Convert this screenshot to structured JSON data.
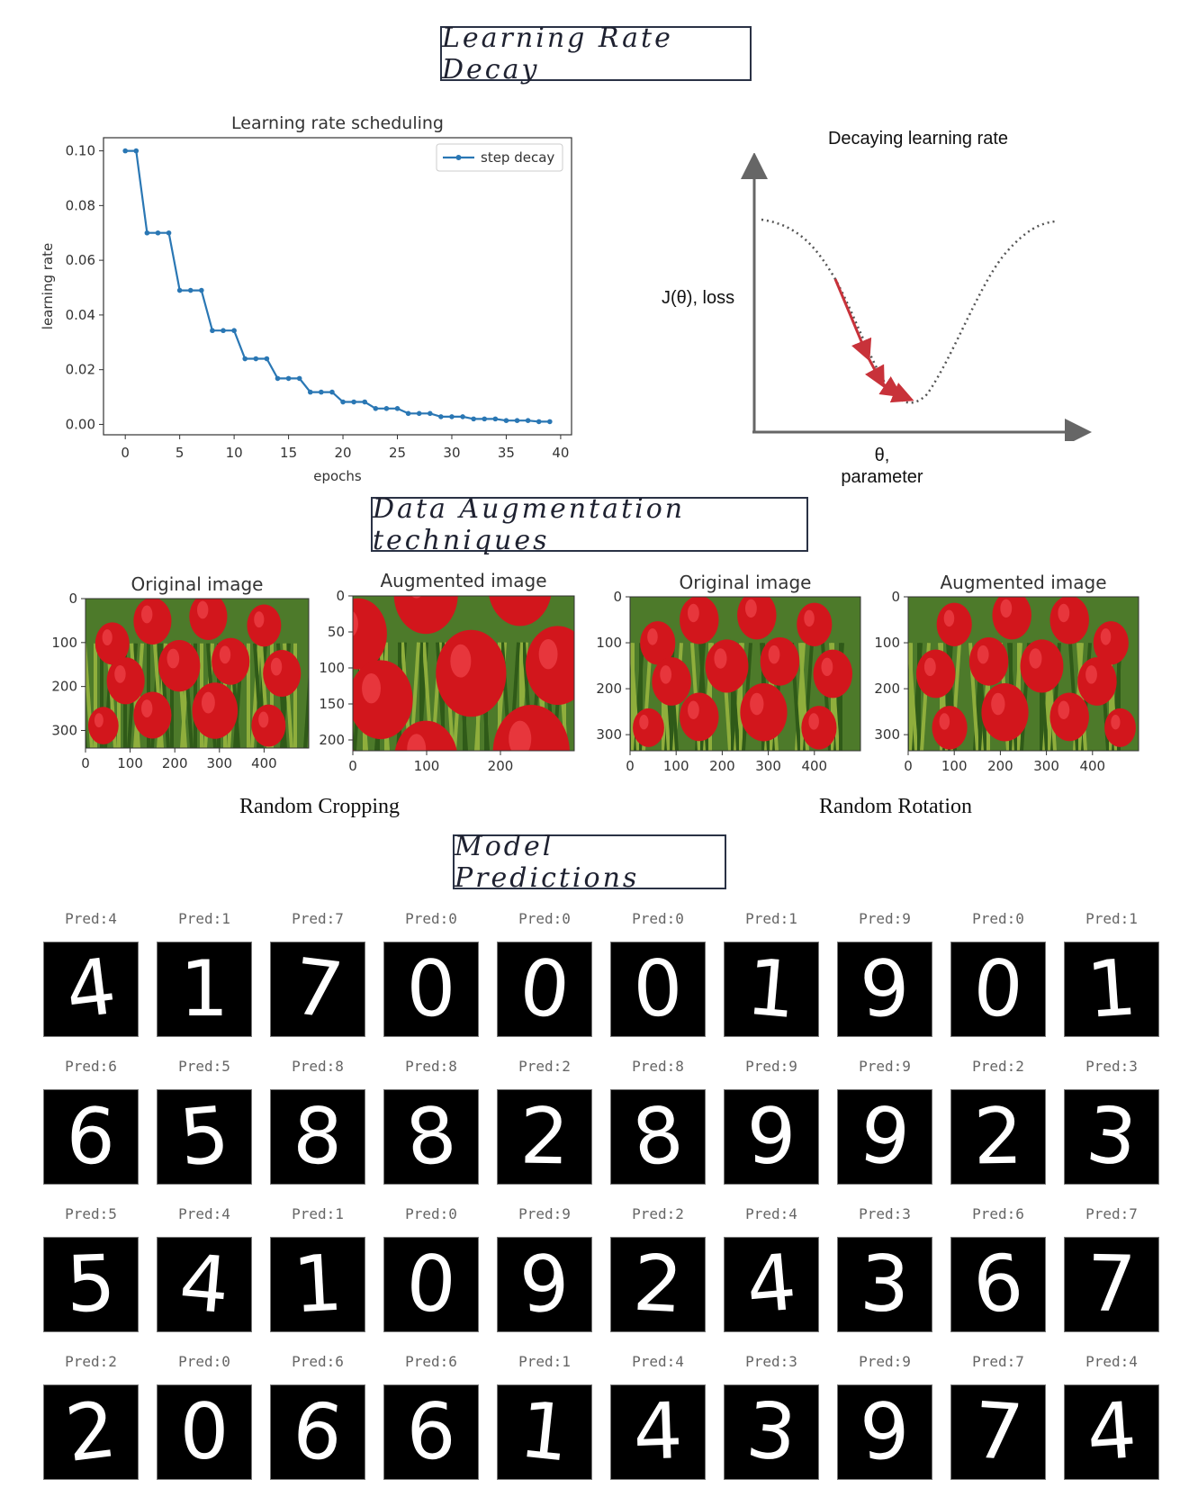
{
  "sections": {
    "lr": "Learning Rate Decay",
    "aug": "Data Augmentation techniques",
    "pred": "Model Predictions"
  },
  "step_chart": {
    "title": "Learning rate scheduling",
    "xlabel": "epochs",
    "ylabel": "learning rate",
    "legend": "step decay",
    "x_ticks": [
      "0",
      "5",
      "10",
      "15",
      "20",
      "25",
      "30",
      "35",
      "40"
    ],
    "y_ticks": [
      "0.00",
      "0.02",
      "0.04",
      "0.06",
      "0.08",
      "0.10"
    ]
  },
  "loss_diagram": {
    "title": "Decaying learning rate",
    "ylabel": "J(θ), loss",
    "xlabel_line1": "θ,",
    "xlabel_line2": "parameter"
  },
  "augmentation": {
    "orig_title": "Original image",
    "aug_title": "Augmented image",
    "crop_caption": "Random Cropping",
    "rot_caption": "Random Rotation",
    "orig_y_ticks": [
      "0",
      "100",
      "200",
      "300"
    ],
    "orig_x_ticks": [
      "0",
      "100",
      "200",
      "300",
      "400"
    ],
    "crop_y_ticks": [
      "0",
      "50",
      "100",
      "150",
      "200"
    ],
    "crop_x_ticks": [
      "0",
      "100",
      "200"
    ]
  },
  "chart_data": [
    {
      "type": "line",
      "title": "Learning rate scheduling",
      "xlabel": "epochs",
      "ylabel": "learning rate",
      "xlim": [
        0,
        40
      ],
      "ylim": [
        0,
        0.1
      ],
      "legend_position": "top-right",
      "series": [
        {
          "name": "step decay",
          "x": [
            0,
            1,
            2,
            3,
            4,
            5,
            6,
            7,
            8,
            9,
            10,
            11,
            12,
            13,
            14,
            15,
            16,
            17,
            18,
            19,
            20,
            21,
            22,
            23,
            24,
            25,
            26,
            27,
            28,
            29,
            30,
            31,
            32,
            33,
            34,
            35,
            36,
            37,
            38,
            39
          ],
          "values": [
            0.1,
            0.1,
            0.07,
            0.07,
            0.07,
            0.049,
            0.049,
            0.049,
            0.0343,
            0.0343,
            0.0343,
            0.024,
            0.024,
            0.024,
            0.0168,
            0.0168,
            0.0168,
            0.0118,
            0.0118,
            0.0118,
            0.0082,
            0.0082,
            0.0082,
            0.0058,
            0.0058,
            0.0058,
            0.004,
            0.004,
            0.004,
            0.0028,
            0.0028,
            0.0028,
            0.002,
            0.002,
            0.002,
            0.0014,
            0.0014,
            0.0014,
            0.001,
            0.001
          ]
        }
      ]
    }
  ],
  "predictions": [
    [
      "Pred:4",
      "Pred:1",
      "Pred:7",
      "Pred:0",
      "Pred:0",
      "Pred:0",
      "Pred:1",
      "Pred:9",
      "Pred:0",
      "Pred:1"
    ],
    [
      "Pred:6",
      "Pred:5",
      "Pred:8",
      "Pred:8",
      "Pred:2",
      "Pred:8",
      "Pred:9",
      "Pred:9",
      "Pred:2",
      "Pred:3"
    ],
    [
      "Pred:5",
      "Pred:4",
      "Pred:1",
      "Pred:0",
      "Pred:9",
      "Pred:2",
      "Pred:4",
      "Pred:3",
      "Pred:6",
      "Pred:7"
    ],
    [
      "Pred:2",
      "Pred:0",
      "Pred:6",
      "Pred:6",
      "Pred:1",
      "Pred:4",
      "Pred:3",
      "Pred:9",
      "Pred:7",
      "Pred:4"
    ]
  ],
  "digits": [
    [
      "4",
      "1",
      "7",
      "0",
      "0",
      "0",
      "1",
      "9",
      "0",
      "1"
    ],
    [
      "6",
      "5",
      "8",
      "8",
      "2",
      "8",
      "9",
      "9",
      "2",
      "3"
    ],
    [
      "5",
      "4",
      "1",
      "0",
      "9",
      "2",
      "4",
      "3",
      "6",
      "7"
    ],
    [
      "2",
      "0",
      "6",
      "6",
      "1",
      "4",
      "3",
      "9",
      "7",
      "4"
    ]
  ]
}
